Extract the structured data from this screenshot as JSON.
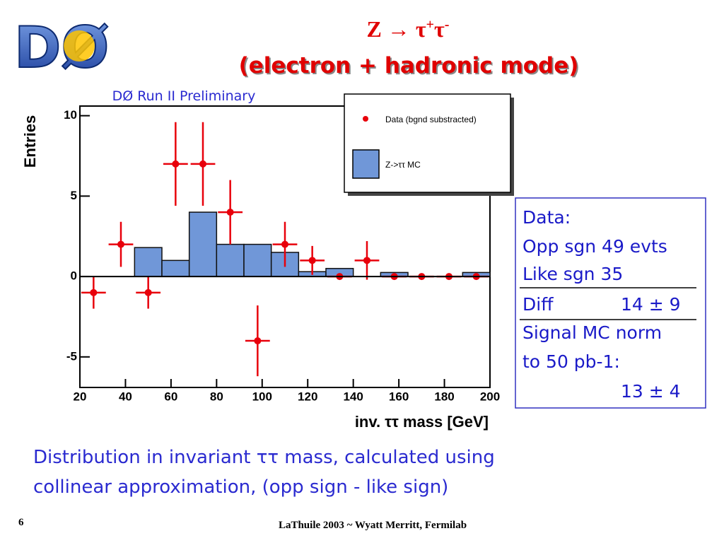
{
  "logo": "DØ",
  "title": {
    "base1": "Z → τ",
    "sup1": "+",
    "base2": "τ",
    "sup2": "-",
    "line2": "(electron + hadronic mode)"
  },
  "info_box": [
    "Data:",
    "Opp sgn 49 evts",
    "Like sgn 35",
    "Diff",
    "14 ± 9",
    "Signal MC norm",
    "to 50 pb-1:",
    "13 ± 4"
  ],
  "caption": [
    "Distribution in invariant ττ mass, calculated using",
    "collinear approximation, (opp sign - like sign)"
  ],
  "footer": "LaThuile 2003 ~ Wyatt Merritt, Fermilab",
  "page_number": "6",
  "chart_data": {
    "type": "histogram",
    "annotation": "DØ Run II Preliminary",
    "xlabel": "inv. ττ mass [GeV]",
    "ylabel": "Entries",
    "bins": [
      20,
      32,
      44,
      56,
      68,
      80,
      92,
      104,
      116,
      128,
      140,
      152,
      164,
      176,
      188,
      200
    ],
    "xlim": [
      20,
      200
    ],
    "ylim": [
      -6.9,
      10.6
    ],
    "xticks": [
      20,
      40,
      60,
      80,
      100,
      120,
      140,
      160,
      180,
      200
    ],
    "yticks": [
      -5,
      0,
      5,
      10
    ],
    "legend": "top-right",
    "series": [
      {
        "name": "Z->ττ MC",
        "color": "#7097d8",
        "values": [
          0,
          0,
          1.8,
          1,
          4,
          2,
          2,
          1.5,
          0.3,
          0.5,
          0,
          0.25,
          0,
          0,
          0.25
        ]
      },
      {
        "name": "Data (bgnd substracted)",
        "type": "errorbar",
        "color": "#e8000b",
        "x": [
          26,
          38,
          50,
          62,
          74,
          86,
          98,
          110,
          122,
          134,
          146,
          158,
          170,
          182,
          194
        ],
        "values": [
          -1,
          2,
          -1,
          7,
          7,
          4,
          -4,
          2,
          1,
          0,
          1,
          0,
          0,
          0,
          0
        ],
        "errors": [
          1,
          1.4,
          1,
          2.6,
          2.6,
          2,
          2.2,
          1.4,
          0.9,
          0,
          1.2,
          0,
          0,
          0,
          0
        ]
      }
    ]
  }
}
